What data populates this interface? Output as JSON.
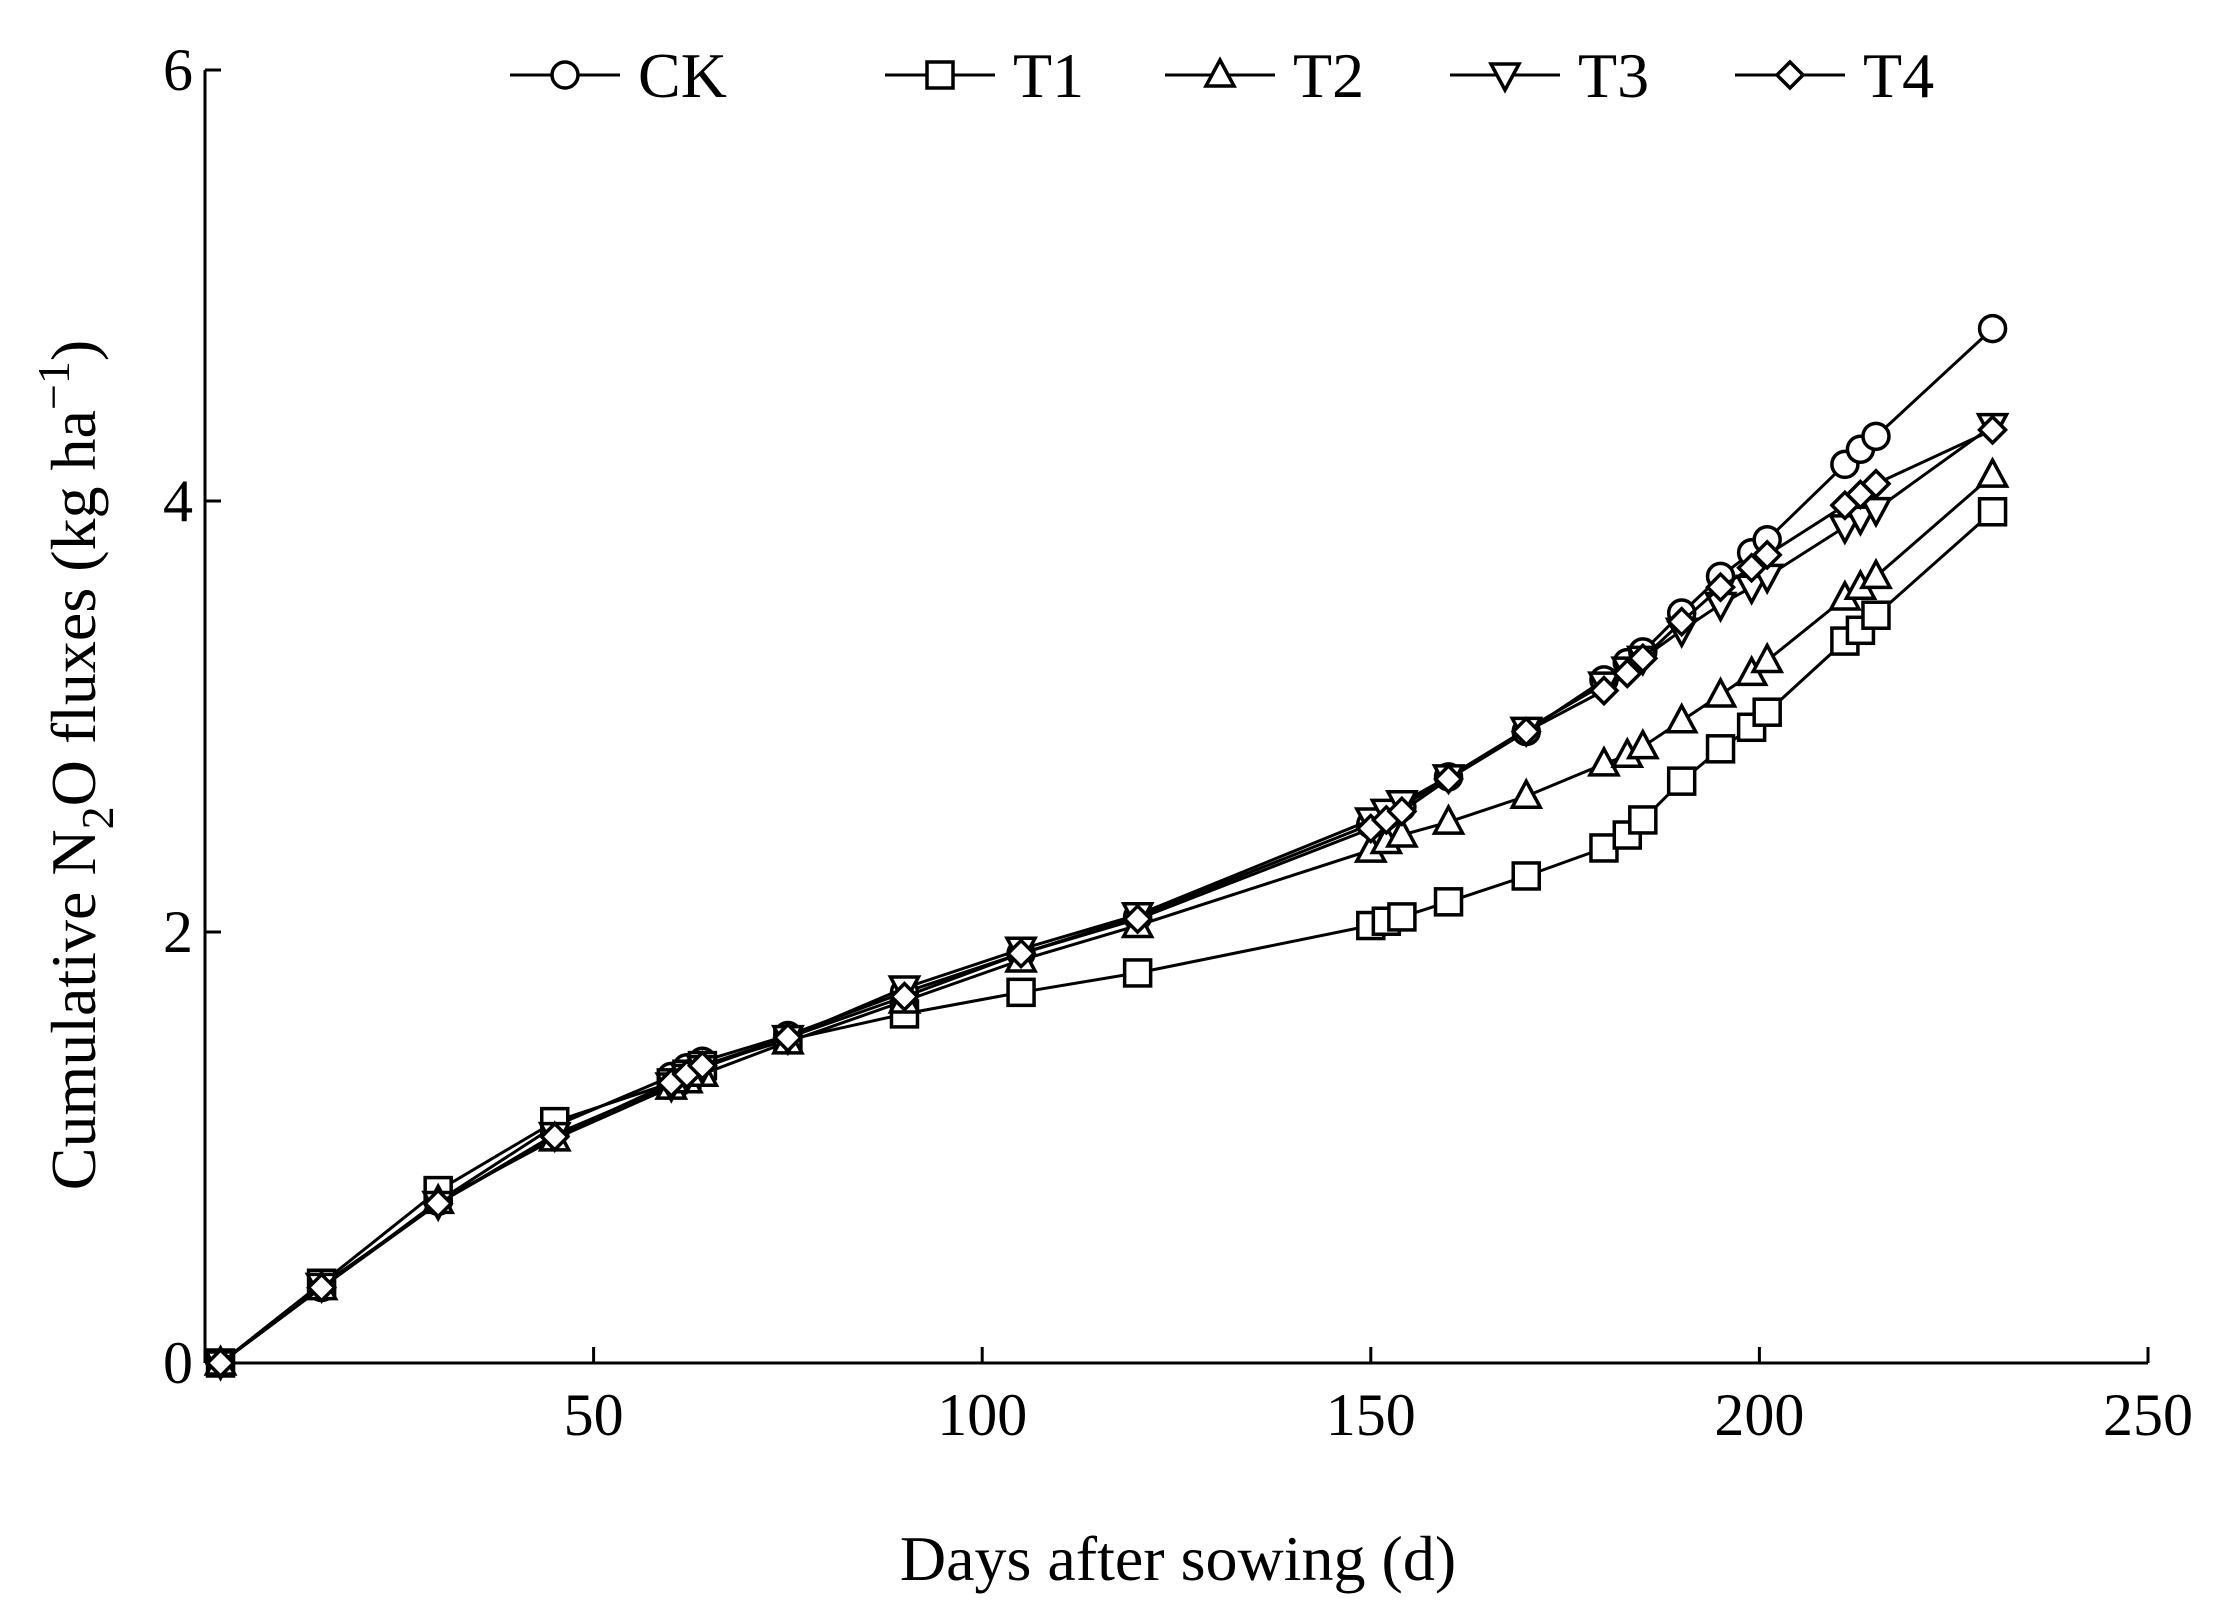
{
  "chart_data": {
    "type": "line",
    "title": "",
    "xlabel": "Days after sowing (d)",
    "ylabel": {
      "prefix": "Cumulative N",
      "subscript": "2",
      "middle": "O fluxes (kg ha",
      "superscript": "−1",
      "suffix": ")"
    },
    "xlim": [
      0,
      250
    ],
    "ylim": [
      0,
      6
    ],
    "xticks": [
      50,
      100,
      150,
      200,
      250
    ],
    "yticks": [
      0,
      2,
      4,
      6
    ],
    "grid": false,
    "legend_position": "top",
    "x": [
      2,
      15,
      30,
      45,
      60,
      62,
      64,
      75,
      90,
      105,
      120,
      150,
      152,
      154,
      160,
      170,
      180,
      183,
      185,
      190,
      195,
      199,
      201,
      211,
      213,
      215,
      230
    ],
    "series": [
      {
        "name": "CK",
        "marker": "circle",
        "values": [
          0,
          0.35,
          0.75,
          1.1,
          1.33,
          1.37,
          1.4,
          1.52,
          1.72,
          1.9,
          2.07,
          2.5,
          2.54,
          2.58,
          2.72,
          2.93,
          3.17,
          3.25,
          3.3,
          3.48,
          3.65,
          3.76,
          3.82,
          4.17,
          4.24,
          4.3,
          4.8
        ]
      },
      {
        "name": "T1",
        "marker": "square",
        "values": [
          0,
          0.37,
          0.8,
          1.12,
          1.3,
          1.34,
          1.38,
          1.5,
          1.62,
          1.72,
          1.81,
          2.03,
          2.05,
          2.07,
          2.14,
          2.26,
          2.39,
          2.45,
          2.52,
          2.7,
          2.85,
          2.95,
          3.02,
          3.35,
          3.4,
          3.47,
          3.95
        ]
      },
      {
        "name": "T2",
        "marker": "triangle-up",
        "values": [
          0,
          0.35,
          0.75,
          1.04,
          1.28,
          1.31,
          1.34,
          1.49,
          1.68,
          1.87,
          2.03,
          2.38,
          2.42,
          2.45,
          2.51,
          2.63,
          2.78,
          2.82,
          2.86,
          2.98,
          3.1,
          3.2,
          3.26,
          3.55,
          3.6,
          3.65,
          4.12
        ]
      },
      {
        "name": "T3",
        "marker": "triangle-down",
        "values": [
          0,
          0.36,
          0.74,
          1.06,
          1.29,
          1.33,
          1.37,
          1.51,
          1.74,
          1.92,
          2.08,
          2.52,
          2.56,
          2.6,
          2.72,
          2.94,
          3.15,
          3.22,
          3.27,
          3.4,
          3.52,
          3.6,
          3.65,
          3.88,
          3.92,
          3.96,
          4.35
        ]
      },
      {
        "name": "T4",
        "marker": "diamond",
        "values": [
          0,
          0.35,
          0.74,
          1.05,
          1.3,
          1.34,
          1.38,
          1.51,
          1.7,
          1.9,
          2.06,
          2.48,
          2.52,
          2.56,
          2.71,
          2.93,
          3.12,
          3.2,
          3.27,
          3.44,
          3.6,
          3.69,
          3.75,
          3.98,
          4.03,
          4.08,
          4.33
        ]
      }
    ]
  }
}
